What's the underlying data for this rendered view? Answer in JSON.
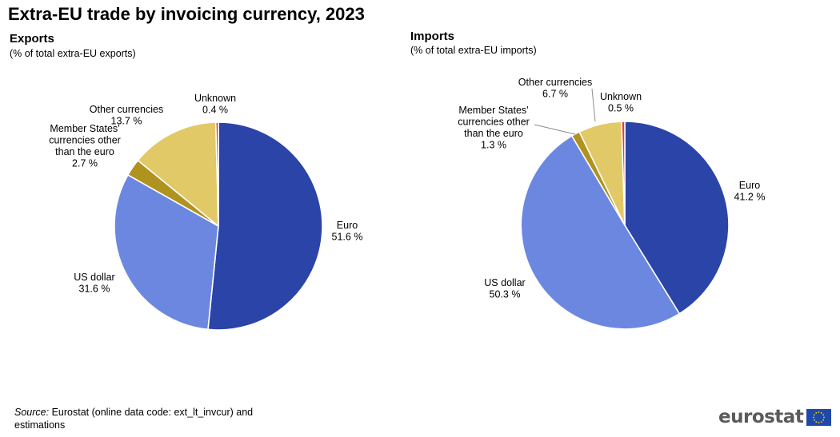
{
  "title": "Extra-EU trade by invoicing currency, 2023",
  "source": {
    "label": "Source:",
    "text": " Eurostat (online data code: ext_lt_invcur) and estimations"
  },
  "logo": {
    "text": "eurostat"
  },
  "colors": {
    "euro": "#2a44a8",
    "us_dollar": "#6c87e0",
    "member_states": "#b0921e",
    "other": "#e2c967",
    "unknown": "#e03c3c"
  },
  "chart_data": [
    {
      "type": "pie",
      "title": "Exports",
      "subtitle": "(% of total extra-EU exports)",
      "slices": [
        {
          "name": "Euro",
          "value": 51.6,
          "label": "51.6 %",
          "color": "#2a44a8"
        },
        {
          "name": "US dollar",
          "value": 31.6,
          "label": "31.6 %",
          "color": "#6c87e0"
        },
        {
          "name": "Member States' currencies other than the euro",
          "value": 2.7,
          "label": "2.7 %",
          "color": "#b0921e"
        },
        {
          "name": "Other currencies",
          "value": 13.7,
          "label": "13.7 %",
          "color": "#e2c967"
        },
        {
          "name": "Unknown",
          "value": 0.4,
          "label": "0.4 %",
          "color": "#e03c3c"
        }
      ]
    },
    {
      "type": "pie",
      "title": "Imports",
      "subtitle": "(% of total extra-EU imports)",
      "slices": [
        {
          "name": "Euro",
          "value": 41.2,
          "label": "41.2 %",
          "color": "#2a44a8"
        },
        {
          "name": "US dollar",
          "value": 50.3,
          "label": "50.3 %",
          "color": "#6c87e0"
        },
        {
          "name": "Member States' currencies other than the euro",
          "value": 1.3,
          "label": "1.3 %",
          "color": "#b0921e"
        },
        {
          "name": "Other currencies",
          "value": 6.7,
          "label": "6.7 %",
          "color": "#e2c967"
        },
        {
          "name": "Unknown",
          "value": 0.5,
          "label": "0.5 %",
          "color": "#e03c3c"
        }
      ]
    }
  ]
}
